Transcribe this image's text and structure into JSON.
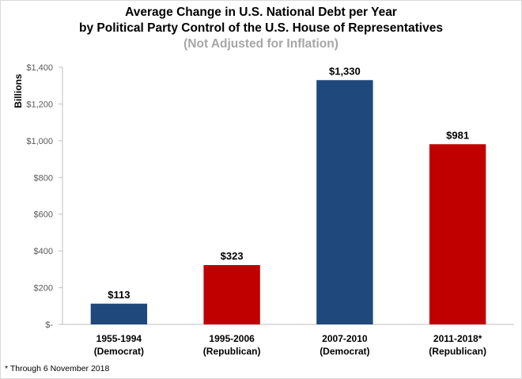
{
  "chart_data": {
    "type": "bar",
    "title_lines": [
      "Average Change in U.S. National Debt per Year",
      "by Political Party Control of the U.S. House of Representatives"
    ],
    "subtitle": "(Not Adjusted for Inflation)",
    "ylabel": "Billions",
    "xlabel": "",
    "ylim": [
      0,
      1400
    ],
    "yticks": [
      0,
      200,
      400,
      600,
      800,
      1000,
      1200,
      1400
    ],
    "ytick_labels": [
      "$-",
      "$200",
      "$400",
      "$600",
      "$800",
      "$1,000",
      "$1,200",
      "$1,400"
    ],
    "grid": false,
    "legend": "none",
    "categories": [
      {
        "period": "1955-1994",
        "party": "(Democrat)"
      },
      {
        "period": "1995-2006",
        "party": "(Republican)"
      },
      {
        "period": "2007-2010",
        "party": "(Democrat)"
      },
      {
        "period": "2011-2018*",
        "party": "(Republican)"
      }
    ],
    "values": [
      113,
      323,
      1330,
      981
    ],
    "data_labels": [
      "$113",
      "$323",
      "$1,330",
      "$981"
    ],
    "bar_colors": [
      "#1f497d",
      "#c00000",
      "#1f497d",
      "#c00000"
    ]
  },
  "colors": {
    "democrat": "#1f497d",
    "republican": "#c00000",
    "subtitle": "#a6a6a6",
    "axis": "#bfbfbf"
  },
  "footnote": "* Through 6 November 2018"
}
